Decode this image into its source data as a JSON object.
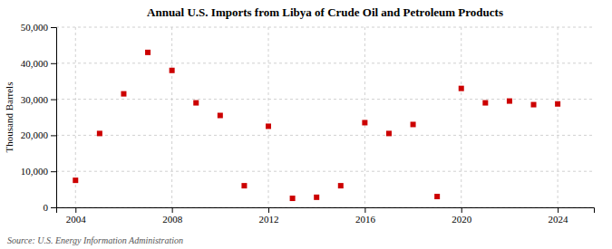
{
  "chart_data": {
    "type": "scatter",
    "title": "Annual U.S. Imports from Libya of Crude Oil and Petroleum Products",
    "ylabel": "Thousand Barrels",
    "annotations": [
      "Source: U.S. Energy Information Administration"
    ],
    "x": [
      2004,
      2005,
      2006,
      2007,
      2008,
      2009,
      2010,
      2011,
      2012,
      2013,
      2014,
      2015,
      2016,
      2017,
      2018,
      2019,
      2020,
      2021,
      2022,
      2023,
      2024
    ],
    "values": [
      7500,
      20500,
      31500,
      43000,
      38000,
      29000,
      25500,
      6000,
      22500,
      2500,
      2800,
      6000,
      23500,
      20500,
      23000,
      3000,
      33000,
      29000,
      29500,
      28500,
      28700
    ],
    "color": "#cc0000",
    "marker": "square",
    "xlim": [
      2003.2,
      2025.5
    ],
    "xticks": [
      2004,
      2008,
      2012,
      2016,
      2020,
      2024
    ],
    "ylim": [
      0,
      50000
    ],
    "yticks": [
      0,
      {
        "value": 10000,
        "label": "10,000"
      },
      {
        "value": 20000,
        "label": "20,000"
      },
      {
        "value": 30000,
        "label": "30,000"
      },
      {
        "value": 40000,
        "label": "40,000"
      },
      {
        "value": 50000,
        "label": "50,000"
      }
    ],
    "grid": true
  }
}
